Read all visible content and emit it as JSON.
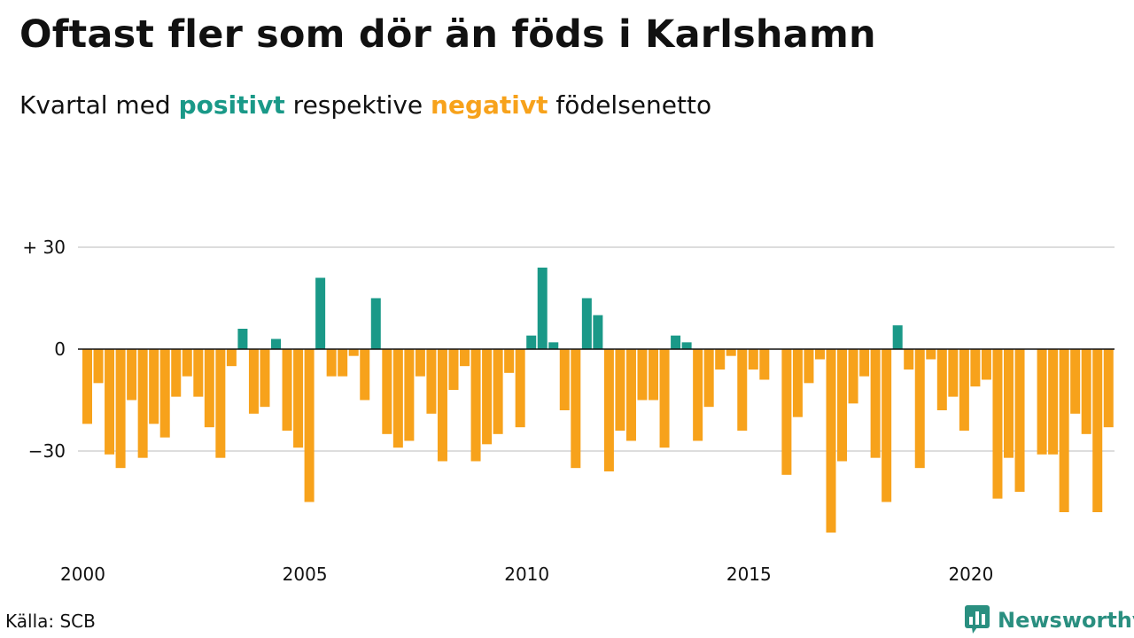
{
  "title": "Oftast fler som dör än föds i Karlshamn",
  "subtitle": {
    "part1": "Kvartal med ",
    "positive": "positivt",
    "part2": " respektive ",
    "negative": "negativt",
    "part3": " födelsenetto"
  },
  "source": "Källa: SCB",
  "brand": "Newsworthy",
  "colors": {
    "positive": "#1a9988",
    "negative": "#f7a21b",
    "grid": "#dddddd",
    "axis": "#111111",
    "brand": "#2a8f80"
  },
  "chart_data": {
    "type": "bar",
    "ylim": [
      -54,
      30
    ],
    "yticks": [
      {
        "value": 30,
        "label": "+ 30"
      },
      {
        "value": 0,
        "label": "0"
      },
      {
        "value": -30,
        "label": "−30"
      }
    ],
    "xticks": [
      {
        "index": 0,
        "label": "2000"
      },
      {
        "index": 20,
        "label": "2005"
      },
      {
        "index": 40,
        "label": "2010"
      },
      {
        "index": 60,
        "label": "2015"
      },
      {
        "index": 80,
        "label": "2020"
      }
    ],
    "start": "2000 Q1",
    "values": [
      -22,
      -10,
      -31,
      -35,
      -15,
      -32,
      -22,
      -26,
      -14,
      -8,
      -14,
      -23,
      -32,
      -5,
      6,
      -19,
      -17,
      3,
      -24,
      -29,
      -45,
      21,
      -8,
      -8,
      -2,
      -15,
      15,
      -25,
      -29,
      -27,
      -8,
      -19,
      -33,
      -12,
      -5,
      -33,
      -28,
      -25,
      -7,
      -23,
      4,
      24,
      2,
      -18,
      -35,
      15,
      10,
      -36,
      -24,
      -27,
      -15,
      -15,
      -29,
      4,
      2,
      -27,
      -17,
      -6,
      -2,
      -24,
      -6,
      -9,
      0,
      -37,
      -20,
      -10,
      -3,
      -54,
      -33,
      -16,
      -8,
      -32,
      -45,
      7,
      -6,
      -35,
      -3,
      -18,
      -14,
      -24,
      -11,
      -9,
      -44,
      -32,
      -42,
      0,
      -31,
      -31,
      -48,
      -19,
      -25,
      -48,
      -23
    ]
  }
}
